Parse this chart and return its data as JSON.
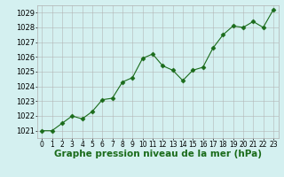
{
  "x": [
    0,
    1,
    2,
    3,
    4,
    5,
    6,
    7,
    8,
    9,
    10,
    11,
    12,
    13,
    14,
    15,
    16,
    17,
    18,
    19,
    20,
    21,
    22,
    23
  ],
  "y": [
    1021.0,
    1021.0,
    1021.5,
    1022.0,
    1021.8,
    1022.3,
    1023.1,
    1023.2,
    1024.3,
    1024.6,
    1025.9,
    1026.2,
    1025.4,
    1025.1,
    1024.4,
    1025.1,
    1025.3,
    1026.6,
    1027.5,
    1028.1,
    1028.0,
    1028.4,
    1028.0,
    1029.2
  ],
  "line_color": "#1a6b1a",
  "marker": "D",
  "markersize": 2.5,
  "bg_color": "#d4f0f0",
  "grid_color": "#b0b0b0",
  "title": "Graphe pression niveau de la mer (hPa)",
  "ylim": [
    1020.5,
    1029.5
  ],
  "yticks": [
    1021,
    1022,
    1023,
    1024,
    1025,
    1026,
    1027,
    1028,
    1029
  ],
  "xticks": [
    0,
    1,
    2,
    3,
    4,
    5,
    6,
    7,
    8,
    9,
    10,
    11,
    12,
    13,
    14,
    15,
    16,
    17,
    18,
    19,
    20,
    21,
    22,
    23
  ],
  "title_fontsize": 7.5,
  "tick_fontsize": 5.5,
  "ytick_fontsize": 6.0,
  "title_color": "#1a6b1a",
  "linewidth": 0.8
}
